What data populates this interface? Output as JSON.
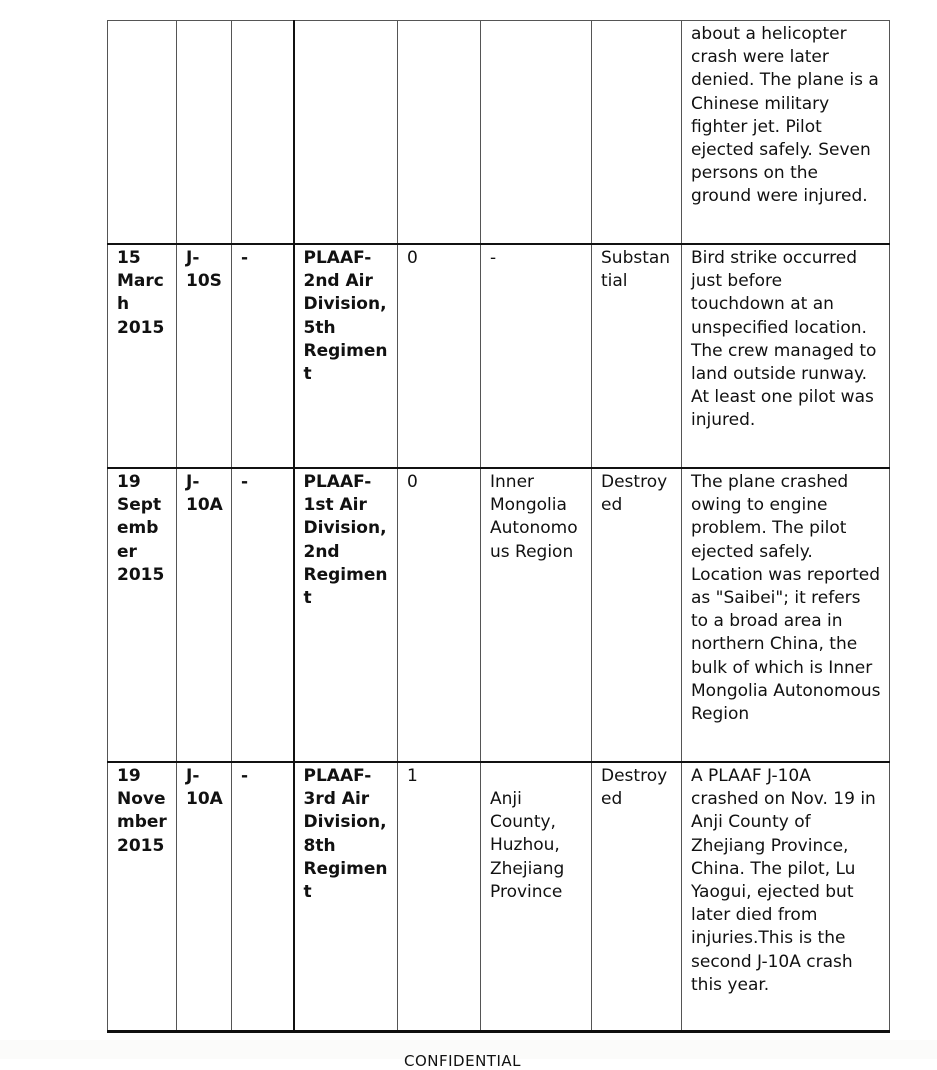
{
  "table": {
    "rows": [
      {
        "date": "",
        "aircraft": "",
        "col3": "",
        "unit": "",
        "fatalities": "",
        "location": "",
        "damage": "",
        "notes": "about a helicopter crash were later denied. The plane is a Chinese military fighter jet. Pilot ejected safely. Seven persons on the ground were injured."
      },
      {
        "date": "15 March 2015",
        "aircraft": "J-10S",
        "col3": "-",
        "unit": "PLAAF-2nd Air Division, 5th Regiment",
        "fatalities": "0",
        "location": "-",
        "damage": "Substantial",
        "notes": "Bird strike occurred just before touchdown at an unspecified location. The crew managed to land outside runway. At least one pilot was injured."
      },
      {
        "date": "19 September 2015",
        "aircraft": "J-10A",
        "col3": "-",
        "unit": "PLAAF-1st Air Division, 2nd Regiment",
        "fatalities": "0",
        "location": "Inner Mongolia Autonomous Region",
        "damage": "Destroyed",
        "notes": "The plane crashed owing to engine problem. The pilot ejected safely. Location was reported as \"Saibei\"; it refers to a broad area in northern China, the bulk of which is Inner Mongolia Autonomous Region"
      },
      {
        "date": "19 November 2015",
        "aircraft": "J-10A",
        "col3": "-",
        "unit": "PLAAF-3rd Air Division, 8th Regiment",
        "fatalities": "1",
        "location": "Anji County, Huzhou, Zhejiang Province",
        "damage": "Destroyed",
        "notes": "A PLAAF J-10A crashed on Nov. 19 in Anji County of Zhejiang Province, China. The pilot, Lu Yaogui, ejected but later died from injuries.This is the second J-10A crash this year."
      }
    ]
  },
  "footer": {
    "text": "CONFIDENTIAL"
  }
}
